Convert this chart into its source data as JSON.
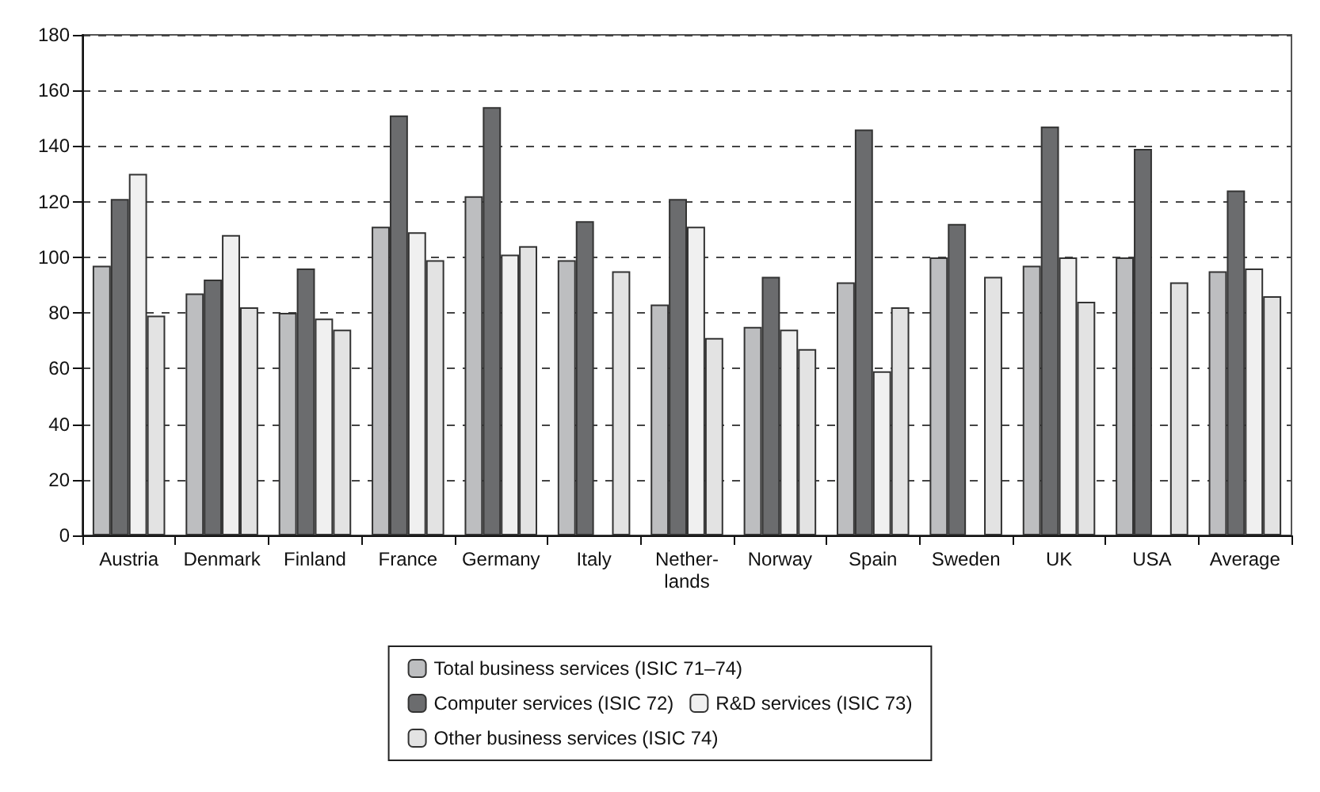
{
  "chart_data": {
    "type": "bar",
    "categories": [
      "Austria",
      "Denmark",
      "Finland",
      "France",
      "Germany",
      "Italy",
      "Nether-\nlands",
      "Norway",
      "Spain",
      "Sweden",
      "UK",
      "USA",
      "Average"
    ],
    "series": [
      {
        "name": "Total business services (ISIC 71–74)",
        "color": "#bdbec0",
        "values": [
          97,
          87,
          80,
          111,
          122,
          99,
          83,
          75,
          91,
          100,
          97,
          100,
          95
        ]
      },
      {
        "name": "Computer services (ISIC 72)",
        "color": "#6b6c6e",
        "values": [
          121,
          92,
          96,
          151,
          154,
          113,
          121,
          93,
          146,
          112,
          147,
          139,
          124
        ]
      },
      {
        "name": "R&D services (ISIC 73)",
        "color": "#f0f0f0",
        "values": [
          130,
          108,
          78,
          109,
          101,
          null,
          111,
          74,
          59,
          null,
          100,
          null,
          96
        ]
      },
      {
        "name": "Other business services (ISIC 74)",
        "color": "#e3e3e3",
        "values": [
          79,
          82,
          74,
          99,
          104,
          95,
          71,
          67,
          82,
          93,
          84,
          91,
          86
        ]
      }
    ],
    "ylim": [
      0,
      180
    ],
    "yticks": [
      0,
      20,
      40,
      60,
      80,
      100,
      120,
      140,
      160,
      180
    ],
    "grid": "y",
    "legend": "bottom"
  }
}
